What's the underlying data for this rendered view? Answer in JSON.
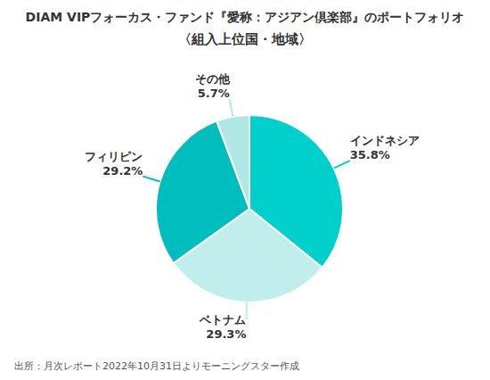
{
  "chart_data": {
    "type": "pie",
    "title": "DIAM VIPフォーカス・ファンド『愛称：アジアン倶楽部』のポートフォリオ",
    "subtitle": "〈組入上位国・地域〉",
    "annotations": [
      "出所：月次レポート2022年10月31日よりモーニングスター作成"
    ],
    "categories": [
      "インドネシア",
      "ベトナム",
      "フィリピン",
      "その他"
    ],
    "values": [
      35.8,
      29.3,
      29.2,
      5.7
    ],
    "value_labels": [
      "35.8%",
      "29.3%",
      "29.2%",
      "5.7%"
    ],
    "colors": [
      "#00D0CC",
      "#C0EEEC",
      "#00BEBE",
      "#B0E8E6"
    ],
    "data_labels": true
  }
}
